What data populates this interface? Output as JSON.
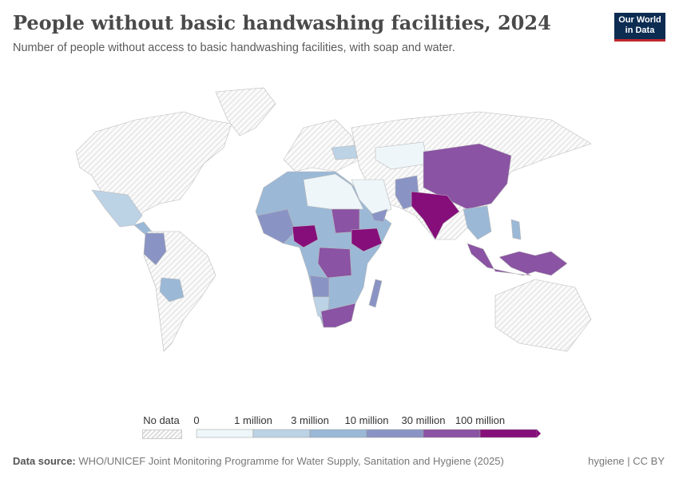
{
  "header": {
    "title": "People without basic handwashing facilities, 2024",
    "subtitle": "Number of people without access to basic handwashing facilities, with soap and water.",
    "logo_line1": "Our World",
    "logo_line2": "in Data"
  },
  "legend": {
    "no_data_label": "No data",
    "bins": [
      {
        "label": "0",
        "color": "#eef6f9"
      },
      {
        "label": "1 million",
        "color": "#bcd2e5"
      },
      {
        "label": "3 million",
        "color": "#9bb8d6"
      },
      {
        "label": "10 million",
        "color": "#8a94c4"
      },
      {
        "label": "30 million",
        "color": "#8a53a3"
      },
      {
        "label": "100 million",
        "color": "#850e7a"
      }
    ],
    "last_color": "#850e7a"
  },
  "footer": {
    "source_label": "Data source:",
    "source": "WHO/UNICEF Joint Monitoring Programme for Water Supply, Sanitation and Hygiene (2025)",
    "license": "hygiene | CC BY"
  }
}
